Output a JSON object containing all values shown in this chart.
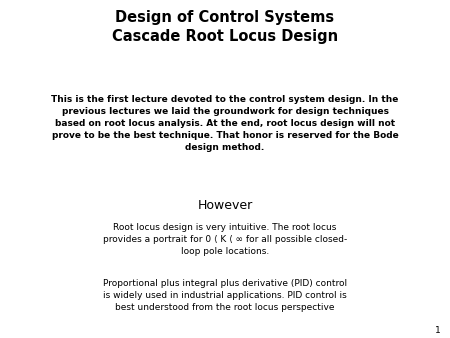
{
  "title_line1": "Design of Control Systems",
  "title_line2": "Cascade Root Locus Design",
  "body_text": "This is the first lecture devoted to the control system design. In the\nprevious lectures we laid the groundwork for design techniques\nbased on root locus analysis. At the end, root locus design will not\nprove to be the best technique. That honor is reserved for the Bode\ndesign method.",
  "however_title": "However",
  "however_body1": "Root locus design is very intuitive. The root locus\nprovides a portrait for 0 ⟨ K ⟨ ∞ for all possible closed-\nloop pole locations.",
  "however_body2": "Proportional plus integral plus derivative (PID) control\nis widely used in industrial applications. PID control is\nbest understood from the root locus perspective",
  "page_number": "1",
  "background_color": "#ffffff",
  "title_color": "#000000",
  "body_color": "#000000",
  "title_fontsize": 10.5,
  "body_fontsize": 6.5,
  "however_title_fontsize": 9.0,
  "however_body_fontsize": 6.5,
  "page_num_fontsize": 6.5
}
